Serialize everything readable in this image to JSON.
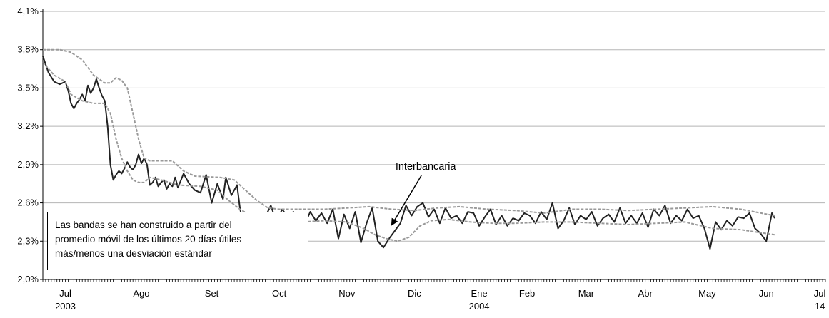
{
  "chart_data": {
    "type": "line",
    "title": "",
    "xlabel": "",
    "ylabel": "",
    "ylim": [
      2.0,
      4.1
    ],
    "yticks": [
      "2,0%",
      "2,3%",
      "2,6%",
      "2,9%",
      "3,2%",
      "3,5%",
      "3,8%",
      "4,1%"
    ],
    "grid": "horizontal",
    "x_month_labels": [
      {
        "label": "Jul",
        "sub": "2003",
        "day": 0
      },
      {
        "label": "Ago",
        "sub": "",
        "day": 27
      },
      {
        "label": "Set",
        "sub": "",
        "day": 52
      },
      {
        "label": "Oct",
        "sub": "",
        "day": 76
      },
      {
        "label": "Nov",
        "sub": "",
        "day": 100
      },
      {
        "label": "Dic",
        "sub": "",
        "day": 124
      },
      {
        "label": "Ene",
        "sub": "2004",
        "day": 147
      },
      {
        "label": "Feb",
        "sub": "",
        "day": 164
      },
      {
        "label": "Mar",
        "sub": "",
        "day": 185
      },
      {
        "label": "Abr",
        "sub": "",
        "day": 206
      },
      {
        "label": "May",
        "sub": "",
        "day": 228
      },
      {
        "label": "Jun",
        "sub": "",
        "day": 249
      },
      {
        "label": "Jul",
        "sub": "14",
        "day": 268
      }
    ],
    "x_range": [
      -8,
      270
    ],
    "series": [
      {
        "name": "Interbancaria",
        "color": "#222222",
        "style": "solid",
        "points": [
          [
            -8,
            3.75
          ],
          [
            -6,
            3.62
          ],
          [
            -4,
            3.55
          ],
          [
            -2,
            3.53
          ],
          [
            0,
            3.55
          ],
          [
            1,
            3.48
          ],
          [
            2,
            3.38
          ],
          [
            3,
            3.34
          ],
          [
            4,
            3.38
          ],
          [
            5,
            3.41
          ],
          [
            6,
            3.45
          ],
          [
            7,
            3.4
          ],
          [
            8,
            3.52
          ],
          [
            9,
            3.46
          ],
          [
            10,
            3.5
          ],
          [
            11,
            3.57
          ],
          [
            12,
            3.5
          ],
          [
            13,
            3.44
          ],
          [
            14,
            3.4
          ],
          [
            15,
            3.2
          ],
          [
            16,
            2.9
          ],
          [
            17,
            2.78
          ],
          [
            18,
            2.82
          ],
          [
            19,
            2.85
          ],
          [
            20,
            2.83
          ],
          [
            21,
            2.87
          ],
          [
            22,
            2.92
          ],
          [
            23,
            2.88
          ],
          [
            24,
            2.86
          ],
          [
            25,
            2.9
          ],
          [
            26,
            2.98
          ],
          [
            27,
            2.91
          ],
          [
            28,
            2.95
          ],
          [
            29,
            2.9
          ],
          [
            30,
            2.74
          ],
          [
            31,
            2.76
          ],
          [
            32,
            2.8
          ],
          [
            33,
            2.73
          ],
          [
            34,
            2.76
          ],
          [
            35,
            2.78
          ],
          [
            36,
            2.71
          ],
          [
            37,
            2.75
          ],
          [
            38,
            2.73
          ],
          [
            39,
            2.8
          ],
          [
            40,
            2.72
          ],
          [
            42,
            2.83
          ],
          [
            44,
            2.75
          ],
          [
            46,
            2.7
          ],
          [
            48,
            2.68
          ],
          [
            50,
            2.82
          ],
          [
            52,
            2.6
          ],
          [
            54,
            2.75
          ],
          [
            56,
            2.63
          ],
          [
            57,
            2.8
          ],
          [
            59,
            2.66
          ],
          [
            61,
            2.74
          ],
          [
            62,
            2.56
          ],
          [
            63,
            2.45
          ],
          [
            64,
            2.52
          ],
          [
            65,
            2.47
          ],
          [
            67,
            2.52
          ],
          [
            69,
            2.46
          ],
          [
            71,
            2.49
          ],
          [
            73,
            2.58
          ],
          [
            75,
            2.45
          ],
          [
            77,
            2.55
          ],
          [
            79,
            2.49
          ],
          [
            81,
            2.53
          ],
          [
            83,
            2.48
          ],
          [
            85,
            2.43
          ],
          [
            87,
            2.53
          ],
          [
            89,
            2.46
          ],
          [
            91,
            2.52
          ],
          [
            93,
            2.44
          ],
          [
            95,
            2.55
          ],
          [
            97,
            2.32
          ],
          [
            99,
            2.51
          ],
          [
            101,
            2.4
          ],
          [
            103,
            2.53
          ],
          [
            105,
            2.29
          ],
          [
            107,
            2.44
          ],
          [
            109,
            2.56
          ],
          [
            111,
            2.3
          ],
          [
            113,
            2.25
          ],
          [
            115,
            2.32
          ],
          [
            117,
            2.38
          ],
          [
            119,
            2.44
          ],
          [
            121,
            2.58
          ],
          [
            123,
            2.5
          ],
          [
            125,
            2.57
          ],
          [
            127,
            2.6
          ],
          [
            129,
            2.49
          ],
          [
            131,
            2.55
          ],
          [
            133,
            2.44
          ],
          [
            135,
            2.56
          ],
          [
            137,
            2.48
          ],
          [
            139,
            2.5
          ],
          [
            141,
            2.44
          ],
          [
            143,
            2.53
          ],
          [
            145,
            2.52
          ],
          [
            147,
            2.42
          ],
          [
            149,
            2.49
          ],
          [
            151,
            2.55
          ],
          [
            153,
            2.43
          ],
          [
            155,
            2.5
          ],
          [
            157,
            2.42
          ],
          [
            159,
            2.48
          ],
          [
            161,
            2.46
          ],
          [
            163,
            2.52
          ],
          [
            165,
            2.5
          ],
          [
            167,
            2.44
          ],
          [
            169,
            2.53
          ],
          [
            171,
            2.47
          ],
          [
            173,
            2.6
          ],
          [
            175,
            2.4
          ],
          [
            177,
            2.46
          ],
          [
            179,
            2.56
          ],
          [
            181,
            2.43
          ],
          [
            183,
            2.5
          ],
          [
            185,
            2.47
          ],
          [
            187,
            2.53
          ],
          [
            189,
            2.42
          ],
          [
            191,
            2.48
          ],
          [
            193,
            2.51
          ],
          [
            195,
            2.45
          ],
          [
            197,
            2.56
          ],
          [
            199,
            2.44
          ],
          [
            201,
            2.5
          ],
          [
            203,
            2.44
          ],
          [
            205,
            2.52
          ],
          [
            207,
            2.41
          ],
          [
            209,
            2.55
          ],
          [
            211,
            2.5
          ],
          [
            213,
            2.58
          ],
          [
            215,
            2.44
          ],
          [
            217,
            2.5
          ],
          [
            219,
            2.46
          ],
          [
            221,
            2.55
          ],
          [
            223,
            2.48
          ],
          [
            225,
            2.5
          ],
          [
            227,
            2.4
          ],
          [
            229,
            2.24
          ],
          [
            231,
            2.45
          ],
          [
            233,
            2.39
          ],
          [
            235,
            2.46
          ],
          [
            237,
            2.42
          ],
          [
            239,
            2.49
          ],
          [
            241,
            2.48
          ],
          [
            243,
            2.52
          ],
          [
            245,
            2.4
          ],
          [
            247,
            2.36
          ],
          [
            249,
            2.3
          ],
          [
            251,
            2.52
          ],
          [
            252,
            2.48
          ]
        ]
      },
      {
        "name": "",
        "color": "#999999",
        "style": "dashed",
        "points": [
          [
            -8,
            3.8
          ],
          [
            -2,
            3.8
          ],
          [
            2,
            3.78
          ],
          [
            6,
            3.72
          ],
          [
            10,
            3.6
          ],
          [
            14,
            3.54
          ],
          [
            16,
            3.54
          ],
          [
            18,
            3.58
          ],
          [
            20,
            3.56
          ],
          [
            22,
            3.5
          ],
          [
            24,
            3.3
          ],
          [
            26,
            3.1
          ],
          [
            28,
            2.95
          ],
          [
            30,
            2.93
          ],
          [
            38,
            2.93
          ],
          [
            42,
            2.85
          ],
          [
            46,
            2.81
          ],
          [
            55,
            2.8
          ],
          [
            60,
            2.78
          ],
          [
            64,
            2.7
          ],
          [
            68,
            2.62
          ],
          [
            72,
            2.56
          ],
          [
            76,
            2.55
          ],
          [
            84,
            2.55
          ],
          [
            92,
            2.55
          ],
          [
            100,
            2.56
          ],
          [
            108,
            2.57
          ],
          [
            116,
            2.55
          ],
          [
            124,
            2.54
          ],
          [
            132,
            2.56
          ],
          [
            140,
            2.57
          ],
          [
            150,
            2.55
          ],
          [
            160,
            2.54
          ],
          [
            170,
            2.52
          ],
          [
            180,
            2.55
          ],
          [
            190,
            2.55
          ],
          [
            200,
            2.54
          ],
          [
            210,
            2.55
          ],
          [
            220,
            2.56
          ],
          [
            230,
            2.57
          ],
          [
            240,
            2.55
          ],
          [
            252,
            2.5
          ]
        ]
      },
      {
        "name": "",
        "color": "#999999",
        "style": "dashed",
        "points": [
          [
            -8,
            3.7
          ],
          [
            -4,
            3.6
          ],
          [
            0,
            3.55
          ],
          [
            2,
            3.45
          ],
          [
            6,
            3.4
          ],
          [
            10,
            3.38
          ],
          [
            14,
            3.38
          ],
          [
            16,
            3.3
          ],
          [
            18,
            3.1
          ],
          [
            20,
            2.95
          ],
          [
            22,
            2.85
          ],
          [
            24,
            2.78
          ],
          [
            26,
            2.76
          ],
          [
            28,
            2.76
          ],
          [
            30,
            2.8
          ],
          [
            34,
            2.78
          ],
          [
            40,
            2.74
          ],
          [
            48,
            2.73
          ],
          [
            54,
            2.7
          ],
          [
            58,
            2.62
          ],
          [
            62,
            2.55
          ],
          [
            66,
            2.5
          ],
          [
            70,
            2.46
          ],
          [
            76,
            2.44
          ],
          [
            84,
            2.45
          ],
          [
            92,
            2.46
          ],
          [
            100,
            2.45
          ],
          [
            106,
            2.4
          ],
          [
            110,
            2.35
          ],
          [
            114,
            2.32
          ],
          [
            118,
            2.3
          ],
          [
            122,
            2.33
          ],
          [
            126,
            2.42
          ],
          [
            130,
            2.46
          ],
          [
            136,
            2.47
          ],
          [
            144,
            2.45
          ],
          [
            152,
            2.44
          ],
          [
            160,
            2.44
          ],
          [
            170,
            2.45
          ],
          [
            180,
            2.45
          ],
          [
            190,
            2.44
          ],
          [
            200,
            2.43
          ],
          [
            210,
            2.44
          ],
          [
            220,
            2.45
          ],
          [
            230,
            2.4
          ],
          [
            240,
            2.39
          ],
          [
            252,
            2.35
          ]
        ]
      }
    ],
    "annotations": [
      {
        "text": "Interbancaria",
        "at": [
          128,
          2.86
        ],
        "arrow_to": [
          116,
          2.43
        ]
      }
    ]
  },
  "note": {
    "lines": [
      "Las bandas se han construido a partir del",
      "promedio móvil de los últimos 20 días útiles",
      "más/menos una desviación estándar"
    ]
  }
}
